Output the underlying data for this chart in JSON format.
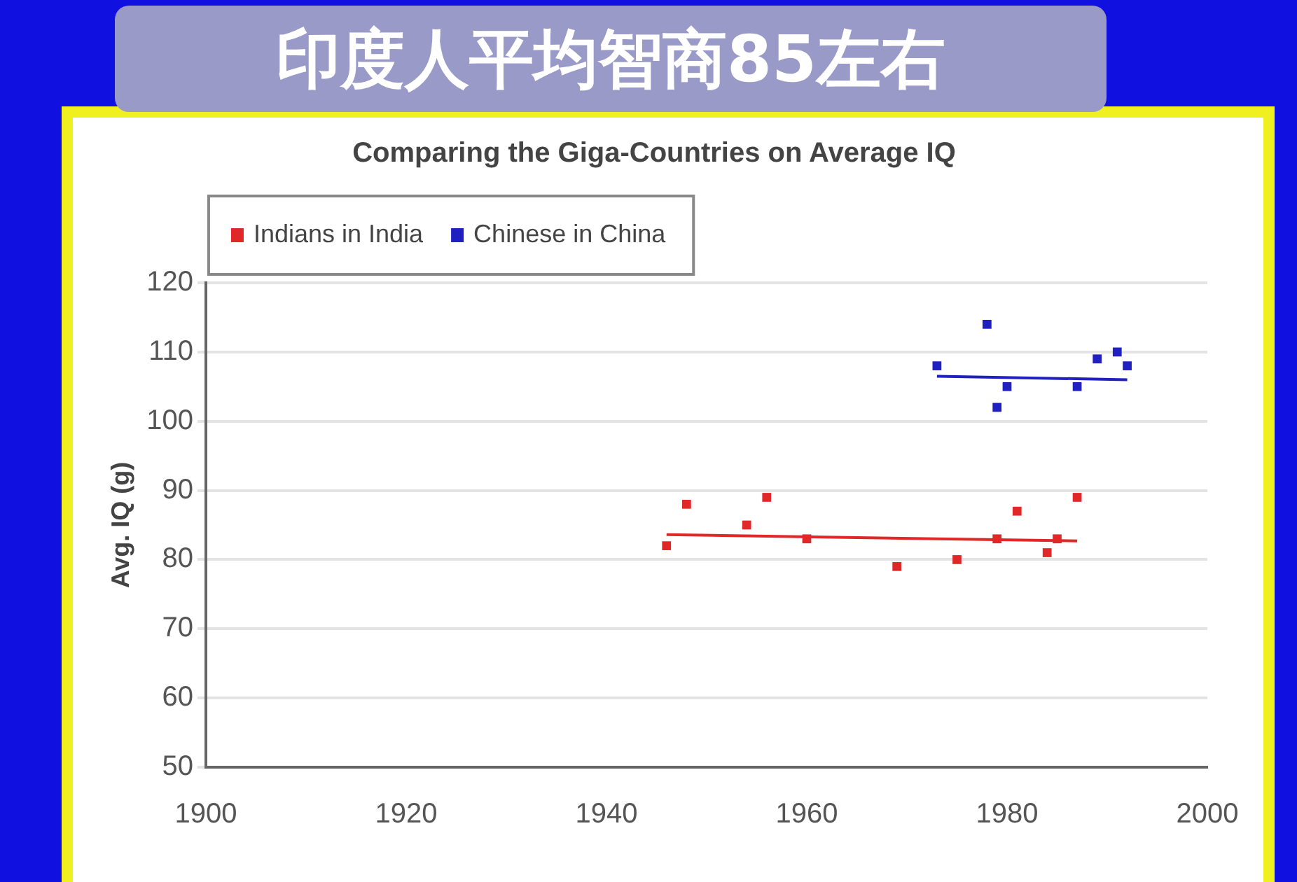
{
  "chart_data": {
    "type": "scatter",
    "title": "印度人平均智商85左右",
    "subtitle": "Comparing the Giga-Countries on Average IQ",
    "ylabel": "Avg. IQ (g)",
    "xlim": [
      1900,
      2000
    ],
    "xticks": [
      1900,
      1920,
      1940,
      1960,
      1980,
      2000
    ],
    "ylim": [
      50,
      120
    ],
    "yticks": [
      50,
      60,
      70,
      80,
      90,
      100,
      110,
      120
    ],
    "grid": "y",
    "legend": "top left",
    "series": [
      {
        "name": "Indians in India",
        "color": "#e02828",
        "marker": "square",
        "x": [
          1946,
          1948,
          1954,
          1956,
          1960,
          1969,
          1975,
          1979,
          1981,
          1984,
          1985,
          1987
        ],
        "values": [
          82,
          88,
          85,
          89,
          83,
          79,
          80,
          83,
          87,
          81,
          83,
          89
        ]
      },
      {
        "name": "Chinese in China",
        "color": "#2020c0",
        "marker": "square",
        "x": [
          1973,
          1978,
          1980,
          1979,
          1987,
          1989,
          1991,
          1992
        ],
        "values": [
          108,
          114,
          105,
          102,
          105,
          109,
          110,
          108
        ]
      },
      {
        "type": "line",
        "color": "#e02828",
        "marker": "none",
        "x": [
          1946,
          1987
        ],
        "values": [
          83.6,
          82.7
        ]
      },
      {
        "type": "line",
        "color": "#2020c0",
        "marker": "none",
        "x": [
          1973,
          1992
        ],
        "values": [
          106.5,
          106
        ]
      }
    ]
  }
}
